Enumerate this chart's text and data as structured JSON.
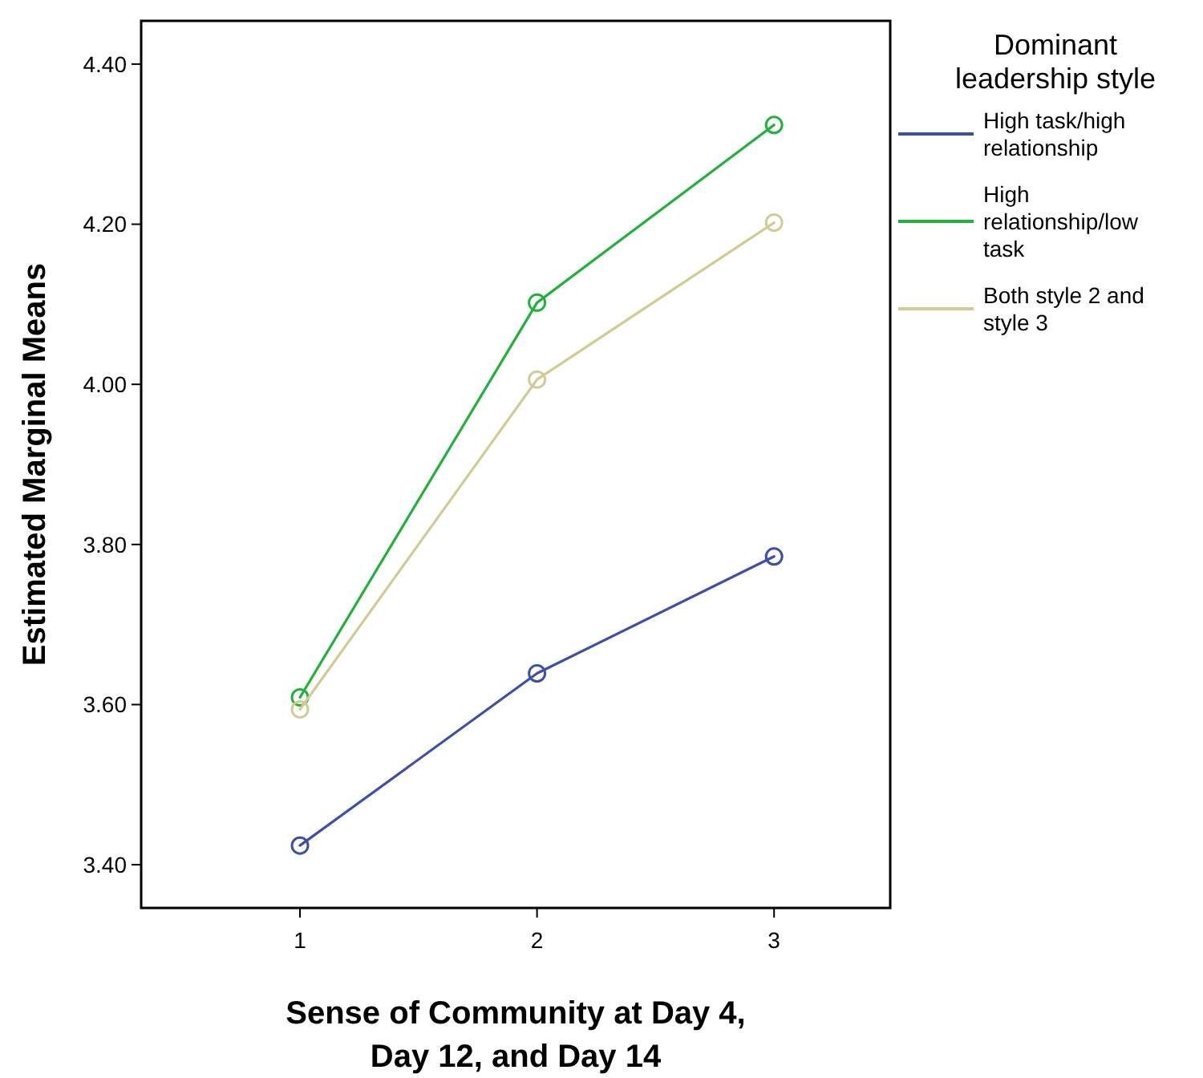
{
  "chart_data": {
    "type": "line",
    "xlabel": "Sense of Community at Day 4, Day 12, and Day 14",
    "ylabel": "Estimated Marginal Means",
    "legend_title": "Dominant leadership style",
    "x": [
      1,
      2,
      3
    ],
    "xlim": [
      0.33,
      3.49
    ],
    "xticks": [
      1,
      2,
      3
    ],
    "ylim": [
      3.346,
      4.454
    ],
    "yticks": [
      {
        "value": 3.4,
        "label": "3.40"
      },
      {
        "value": 3.6,
        "label": "3.60"
      },
      {
        "value": 3.8,
        "label": "3.80"
      },
      {
        "value": 4.0,
        "label": "4.00"
      },
      {
        "value": 4.2,
        "label": "4.20"
      },
      {
        "value": 4.4,
        "label": "4.40"
      }
    ],
    "marker": "circle",
    "line_style": "solid",
    "grid": false,
    "legend": "right",
    "series": [
      {
        "name": "High task/high relationship",
        "color": "#3d4fae",
        "values": [
          3.424,
          3.639,
          3.785
        ]
      },
      {
        "name": "High relationship/low task",
        "color": "#1fb33a",
        "values": [
          3.609,
          4.102,
          4.324
        ]
      },
      {
        "name": "Both style 2 and style 3",
        "color": "#d2cb93",
        "values": [
          3.594,
          4.006,
          4.202
        ]
      }
    ]
  }
}
